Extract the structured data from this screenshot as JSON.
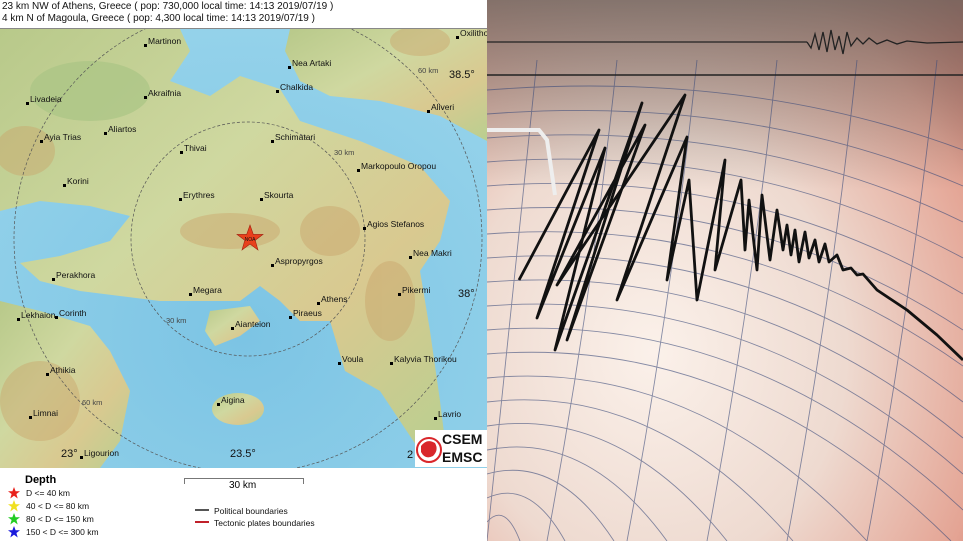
{
  "header": {
    "line1": "23 km NW of Athens, Greece  (  pop: 730,000   local time: 14:13 2019/07/19 )",
    "line2": "4 km N of Magoula, Greece  (  pop: 4,300   local time: 14:13 2019/07/19 )"
  },
  "map": {
    "epicenter_label": "NOA",
    "places": [
      "Martinon",
      "Nea Artaki",
      "Chalkida",
      "Akraifnia",
      "Livadeia",
      "Aliveri",
      "Aliartos",
      "Ayia Trias",
      "Schimatari",
      "Thivai",
      "Markopoulo Oropou",
      "Korini",
      "Erythres",
      "Skourta",
      "Agios Stefanos",
      "Nea Makri",
      "Aspropyrgos",
      "Perakhora",
      "Megara",
      "Pikermi",
      "Athens",
      "Piraeus",
      "Lekhaion",
      "Corinth",
      "Aianteion",
      "Voula",
      "Kalyvia Thorikou",
      "Athikia",
      "Aigina",
      "Limnai",
      "Lavrio",
      "Ligourion",
      "Oxilithos"
    ],
    "ring_labels": [
      "60 km",
      "30 km",
      "30 km",
      "60 km"
    ],
    "graticule": [
      "38.5°",
      "38°",
      "23°",
      "23.5°",
      "2"
    ],
    "logo_text": [
      "CSEM",
      "EMSC"
    ],
    "colors": {
      "water": "#86cbe6",
      "land": "#c4d49a",
      "epicenter": "#e8401c"
    }
  },
  "scale_bar": {
    "label": "30 km"
  },
  "legend": {
    "title": "Depth",
    "items": [
      {
        "label": "D <= 40 km",
        "color": "#e8211c"
      },
      {
        "label": "40 < D <= 80 km",
        "color": "#f0e020"
      },
      {
        "label": "80 < D <= 150 km",
        "color": "#22cc22"
      },
      {
        "label": "150 < D <= 300 km",
        "color": "#1a1adc"
      }
    ],
    "lines": [
      {
        "label": "Political boundaries",
        "color": "#555555"
      },
      {
        "label": "Tectonic plates boundaries",
        "color": "#c0202a"
      }
    ]
  }
}
